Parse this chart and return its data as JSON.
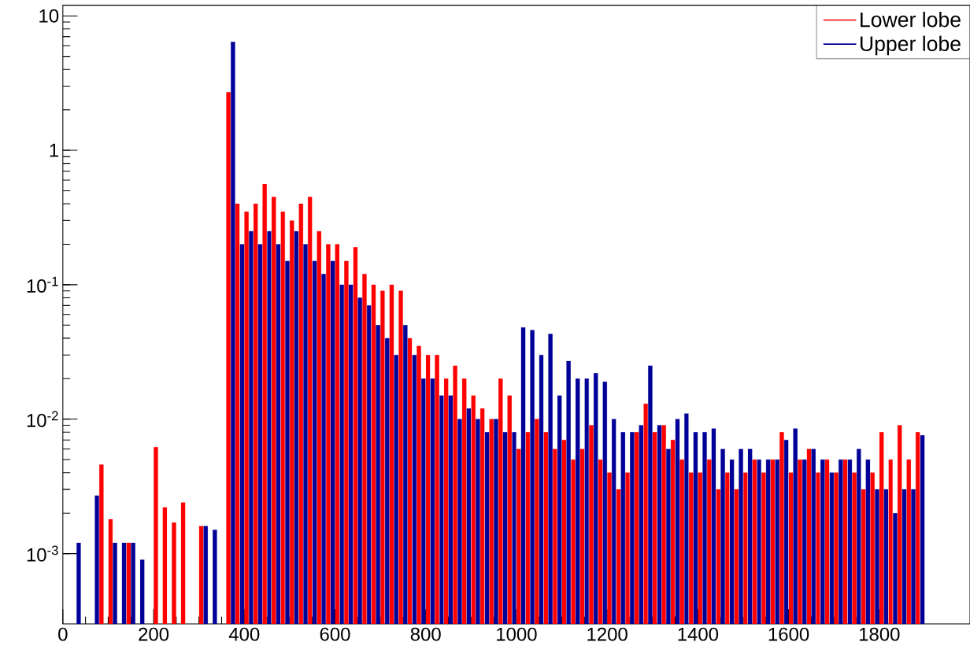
{
  "chart_data": {
    "type": "histogram",
    "log": "y",
    "legend": "top right",
    "bins": [
      0,
      20,
      40,
      60,
      80,
      100,
      120,
      140,
      160,
      180,
      200,
      220,
      240,
      260,
      280,
      300,
      320,
      340,
      360,
      380,
      400,
      420,
      440,
      460,
      480,
      500,
      520,
      540,
      560,
      580,
      600,
      620,
      640,
      660,
      680,
      700,
      720,
      740,
      760,
      780,
      800,
      820,
      840,
      860,
      880,
      900,
      920,
      940,
      960,
      980,
      1000,
      1020,
      1040,
      1060,
      1080,
      1100,
      1120,
      1140,
      1160,
      1180,
      1200,
      1220,
      1240,
      1260,
      1280,
      1300,
      1320,
      1340,
      1360,
      1380,
      1400,
      1420,
      1440,
      1460,
      1480,
      1500,
      1520,
      1540,
      1560,
      1580,
      1600,
      1620,
      1640,
      1660,
      1680,
      1700,
      1720,
      1740,
      1760,
      1780,
      1800,
      1820,
      1840,
      1860,
      1880,
      1900,
      1920,
      1940,
      1960,
      1980,
      2000
    ],
    "series": [
      {
        "name": "Lower lobe",
        "color": "#ff0000",
        "values": [
          null,
          null,
          null,
          null,
          0.0046,
          0.0018,
          null,
          0.0012,
          null,
          null,
          0.0062,
          0.0022,
          0.0017,
          0.0024,
          null,
          0.0016,
          null,
          null,
          2.7,
          0.4,
          0.35,
          0.4,
          0.56,
          0.45,
          0.35,
          0.3,
          0.4,
          0.45,
          0.25,
          0.2,
          0.2,
          0.15,
          0.19,
          0.12,
          0.1,
          0.09,
          0.1,
          0.09,
          0.04,
          0.035,
          0.03,
          0.03,
          0.02,
          0.025,
          0.02,
          0.015,
          0.012,
          0.01,
          0.02,
          0.015,
          0.006,
          0.008,
          0.01,
          0.008,
          0.006,
          0.007,
          0.005,
          0.006,
          0.009,
          0.005,
          0.004,
          0.003,
          0.004,
          0.008,
          0.013,
          0.008,
          0.009,
          0.007,
          0.005,
          0.004,
          0.004,
          0.005,
          0.003,
          0.004,
          0.003,
          0.004,
          0.005,
          0.004,
          0.005,
          0.008,
          0.004,
          0.005,
          0.006,
          0.004,
          0.005,
          0.004,
          0.005,
          0.004,
          0.003,
          0.004,
          0.008,
          0.005,
          0.009,
          0.005,
          0.008,
          null,
          null,
          null,
          null,
          null
        ]
      },
      {
        "name": "Upper lobe",
        "color": "#000099",
        "values": [
          null,
          0.0012,
          null,
          0.0027,
          null,
          0.0012,
          0.0012,
          0.0012,
          0.0009,
          null,
          null,
          null,
          null,
          null,
          null,
          0.0016,
          0.0015,
          null,
          6.4,
          0.2,
          0.25,
          0.2,
          0.25,
          0.2,
          0.15,
          0.25,
          0.2,
          0.15,
          0.12,
          0.15,
          0.1,
          0.1,
          0.08,
          0.07,
          0.05,
          0.04,
          0.03,
          0.05,
          0.03,
          0.02,
          0.02,
          0.015,
          0.015,
          0.01,
          0.012,
          0.01,
          0.008,
          0.01,
          0.008,
          0.008,
          0.048,
          0.046,
          0.03,
          0.043,
          0.015,
          0.027,
          0.02,
          0.02,
          0.022,
          0.019,
          0.01,
          0.008,
          0.008,
          0.009,
          0.025,
          0.009,
          0.006,
          0.01,
          0.011,
          0.008,
          0.008,
          0.0085,
          0.006,
          0.005,
          0.006,
          0.006,
          0.005,
          0.005,
          0.005,
          0.007,
          0.0085,
          0.005,
          0.006,
          0.005,
          0.004,
          0.005,
          0.005,
          0.006,
          0.005,
          0.003,
          0.003,
          0.002,
          0.003,
          0.003,
          0.0076,
          null,
          null,
          null,
          null,
          null
        ]
      }
    ],
    "xlim": [
      0,
      2000
    ],
    "ylim": [
      0.0003,
      12
    ],
    "xticks": [
      0,
      200,
      400,
      600,
      800,
      1000,
      1200,
      1400,
      1600,
      1800
    ],
    "yticks": [
      {
        "value": 0.001,
        "label": "10$^{-3}$"
      },
      {
        "value": 0.01,
        "label": "10$^{-2}$"
      },
      {
        "value": 0.1,
        "label": "10$^{-1}$"
      },
      1,
      10
    ]
  }
}
